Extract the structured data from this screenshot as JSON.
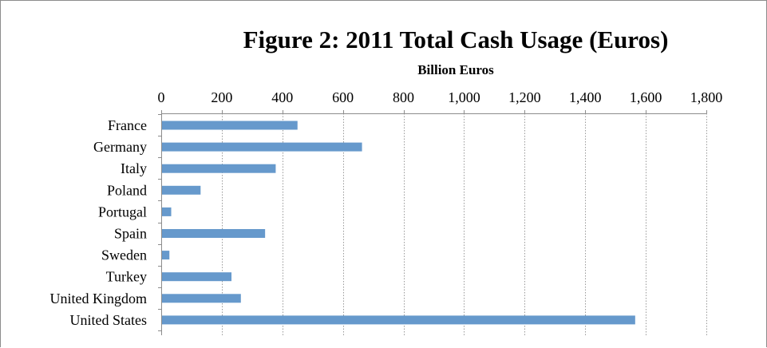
{
  "chart_data": {
    "type": "bar",
    "orientation": "horizontal",
    "title": "Figure 2: 2011 Total Cash Usage (Euros)",
    "subtitle": "Billion Euros",
    "xlabel": "",
    "ylabel": "",
    "xlim": [
      0,
      1800
    ],
    "x_ticks": [
      0,
      200,
      400,
      600,
      800,
      1000,
      1200,
      1400,
      1600,
      1800
    ],
    "x_tick_labels": [
      "0",
      "200",
      "400",
      "600",
      "800",
      "1,000",
      "1,200",
      "1,400",
      "1,600",
      "1,800"
    ],
    "x_axis_position": "top",
    "grid": "vertical dotted",
    "legend": "none",
    "bar_color": "#6699cc",
    "categories": [
      "France",
      "Germany",
      "Italy",
      "Poland",
      "Portugal",
      "Spain",
      "Sweden",
      "Turkey",
      "United Kingdom",
      "United States"
    ],
    "values": [
      450,
      663,
      378,
      130,
      33,
      343,
      27,
      232,
      263,
      1565
    ]
  }
}
